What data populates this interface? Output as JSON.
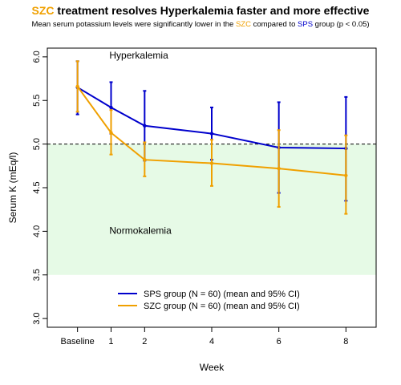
{
  "title": {
    "highlight": "SZC",
    "rest": " treatment resolves Hyperkalemia faster and more effective",
    "highlight_color": "#f0a000"
  },
  "subtitle": {
    "part1": "Mean serum potassium levels were significantly lower in the ",
    "szc": "SZC",
    "part2": " compared to ",
    "sps": "SPS",
    "part3": " group (p < 0.05)"
  },
  "chart_data": {
    "type": "line",
    "xlabel": "Week",
    "ylabel": "Serum K (mEq/l)",
    "x_tick_labels": [
      "Baseline",
      "1",
      "2",
      "4",
      "6",
      "8"
    ],
    "x_tick_values": [
      0,
      1,
      2,
      4,
      6,
      8
    ],
    "xlim": [
      -0.9,
      8.9
    ],
    "y_ticks": [
      "3.0",
      "3.5",
      "4.0",
      "4.5",
      "5.0",
      "5.5",
      "6.0"
    ],
    "ylim": [
      2.9,
      6.1
    ],
    "threshold": 5.0,
    "normokalemia_band": [
      3.5,
      5.0
    ],
    "zone_labels": {
      "upper": "Hyperkalemia",
      "lower": "Normokalemia"
    },
    "legend_position": "bottom",
    "grid": false,
    "series": [
      {
        "name": "SPS group (N = 60) (mean and 95% CI)",
        "color": "#0000cc",
        "x": [
          0,
          1,
          2,
          4,
          6,
          8
        ],
        "mean": [
          5.65,
          5.42,
          5.21,
          5.12,
          4.96,
          4.95
        ],
        "lower": [
          5.34,
          5.12,
          4.81,
          4.82,
          4.44,
          4.35
        ],
        "upper": [
          5.95,
          5.71,
          5.61,
          5.42,
          5.48,
          5.54
        ]
      },
      {
        "name": "SZC group (N = 60) (mean and 95% CI)",
        "color": "#f0a000",
        "x": [
          0,
          1,
          2,
          4,
          6,
          8
        ],
        "mean": [
          5.66,
          5.13,
          4.82,
          4.78,
          4.72,
          4.64
        ],
        "lower": [
          5.37,
          4.88,
          4.63,
          4.52,
          4.28,
          4.2
        ],
        "upper": [
          5.95,
          5.39,
          5.02,
          5.05,
          5.16,
          5.1
        ]
      }
    ]
  }
}
